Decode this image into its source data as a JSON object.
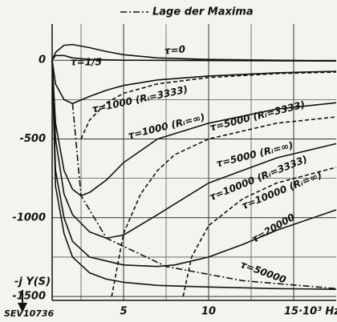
{
  "chart_data": {
    "type": "line",
    "legend_text": "Lage der Maxima",
    "ylabel": "-j Y(S)",
    "figure_id": "SEV10736",
    "xlim": [
      0.8,
      17.5
    ],
    "ylim": [
      -1525,
      230
    ],
    "xticks": [
      5,
      10,
      {
        "value": 15,
        "label": "15·10³ Hz"
      }
    ],
    "yticks": [
      0,
      -500,
      -1000,
      -1500
    ],
    "xminor": [
      2.5,
      7.5,
      12.5
    ],
    "yminor": [
      -250,
      -750,
      -1250
    ],
    "grid": true,
    "series": [
      {
        "name": "τ=0",
        "color": "#111",
        "style": "solid",
        "x": [
          0.8,
          1,
          1.5,
          2,
          3,
          4,
          5,
          7,
          10,
          14,
          17.5
        ],
        "values": [
          0,
          50,
          95,
          100,
          80,
          55,
          35,
          15,
          5,
          0,
          -5
        ]
      },
      {
        "name": "τ=1/5",
        "color": "#111",
        "style": "solid",
        "x": [
          0.8,
          1,
          1.5,
          2,
          3,
          5,
          17.5
        ],
        "values": [
          0,
          30,
          30,
          15,
          5,
          0,
          -5
        ]
      },
      {
        "name": "τ=1000 (Rᵢ=3333)",
        "color": "#111",
        "style": "solid",
        "x": [
          0.8,
          1,
          1.5,
          2,
          3,
          4,
          5,
          7,
          10,
          14,
          17.5
        ],
        "values": [
          0,
          -150,
          -250,
          -275,
          -230,
          -190,
          -160,
          -125,
          -100,
          -80,
          -70
        ]
      },
      {
        "name": "τ=1000 (Rᵢ=∞)",
        "color": "#111",
        "style": "dashed",
        "x": [
          2.5,
          3,
          4,
          5,
          7,
          10,
          14,
          17.5
        ],
        "values": [
          -500,
          -380,
          -270,
          -210,
          -150,
          -110,
          -85,
          -75
        ]
      },
      {
        "name": "τ=5000 (Rᵢ=3333)",
        "color": "#111",
        "style": "solid",
        "x": [
          0.8,
          1,
          1.5,
          2,
          2.5,
          3,
          4,
          5,
          7,
          10,
          14,
          17.5
        ],
        "values": [
          0,
          -400,
          -700,
          -820,
          -860,
          -840,
          -760,
          -650,
          -500,
          -400,
          -310,
          -270
        ]
      },
      {
        "name": "τ=5000 (Rᵢ=∞)",
        "color": "#111",
        "style": "dashed",
        "x": [
          4.3,
          5,
          6,
          7,
          8,
          10,
          14,
          17.5
        ],
        "values": [
          -1500,
          -1100,
          -850,
          -700,
          -600,
          -500,
          -400,
          -360
        ]
      },
      {
        "name": "τ=10000 (Rᵢ=3333)",
        "color": "#111",
        "style": "solid",
        "x": [
          0.8,
          1,
          1.5,
          2,
          3,
          4,
          5,
          7,
          10,
          14,
          17.5
        ],
        "values": [
          0,
          -500,
          -850,
          -980,
          -1090,
          -1130,
          -1110,
          -980,
          -780,
          -620,
          -530
        ]
      },
      {
        "name": "τ=10000 (Rᵢ=∞)",
        "color": "#111",
        "style": "dashed",
        "x": [
          8.5,
          9,
          10,
          12,
          14,
          17.5
        ],
        "values": [
          -1500,
          -1250,
          -1050,
          -880,
          -780,
          -680
        ]
      },
      {
        "name": "τ=20000",
        "color": "#111",
        "style": "solid",
        "x": [
          0.8,
          1,
          1.5,
          2,
          3,
          5,
          7,
          8,
          10,
          12,
          14,
          17.5
        ],
        "values": [
          0,
          -700,
          -1000,
          -1150,
          -1250,
          -1300,
          -1310,
          -1300,
          -1250,
          -1170,
          -1080,
          -950
        ]
      },
      {
        "name": "τ=50000",
        "color": "#111",
        "style": "solid",
        "x": [
          0.8,
          1,
          1.5,
          2,
          3,
          4,
          5,
          7,
          10,
          14,
          17.5
        ],
        "values": [
          0,
          -800,
          -1100,
          -1250,
          -1350,
          -1390,
          -1410,
          -1430,
          -1440,
          -1450,
          -1455
        ]
      },
      {
        "name": "Lage der Maxima",
        "color": "#111",
        "style": "dashdot",
        "x": [
          2,
          2.5,
          4,
          7.5,
          12,
          17.5
        ],
        "values": [
          -275,
          -860,
          -1130,
          -1310,
          -1400,
          -1450
        ]
      }
    ]
  }
}
